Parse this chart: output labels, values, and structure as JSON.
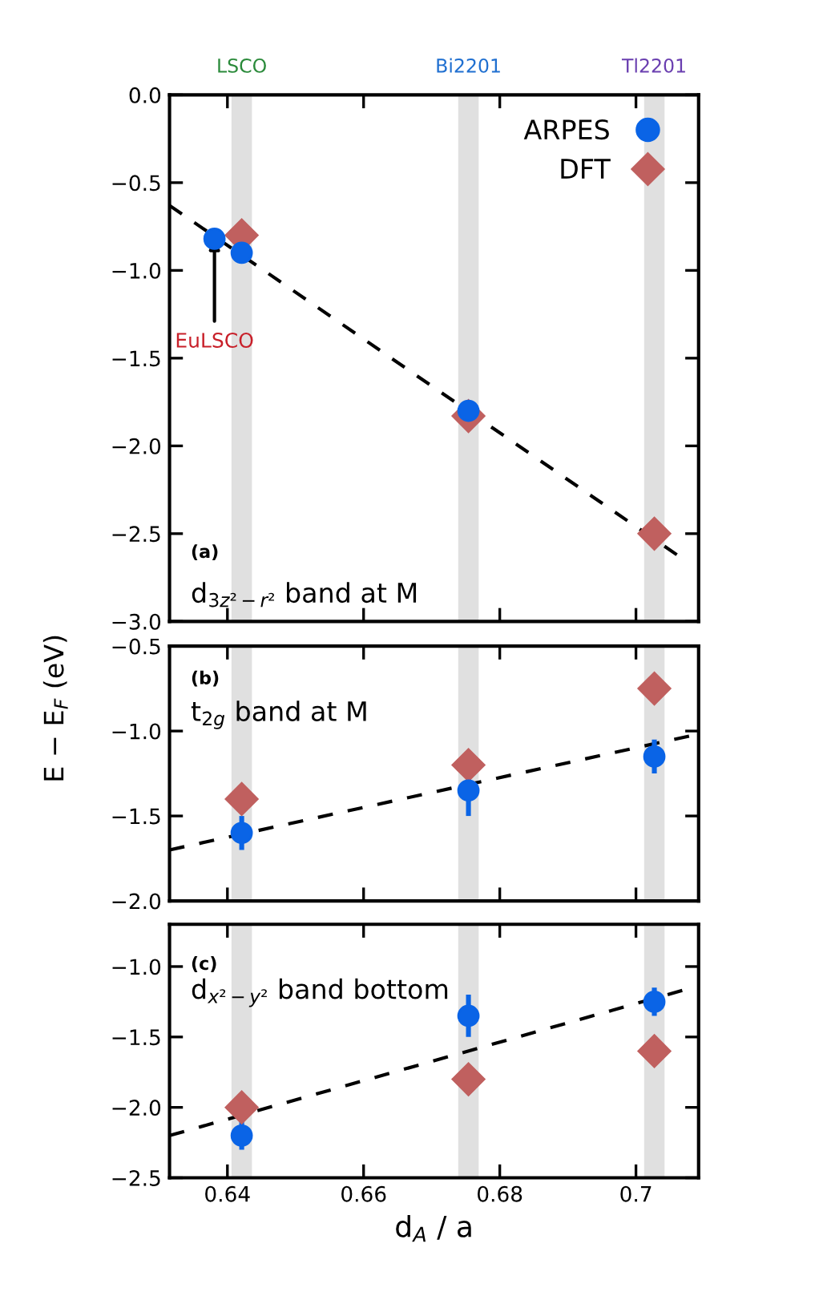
{
  "chart_data": [
    {
      "type": "scatter",
      "ylabel": "E − E$_{F}$ (eV)",
      "xlim": [
        0.6315,
        0.7092
      ],
      "xticks": [
        0.64,
        0.66,
        0.68,
        0.7
      ],
      "ylim": [
        -3.0,
        0.0
      ],
      "yticks": [
        {
          "value": -3.0,
          "label": "−3.0"
        },
        {
          "value": -2.5,
          "label": "−2.5"
        },
        {
          "value": -2.0,
          "label": "−2.0"
        },
        {
          "value": -1.5,
          "label": "−1.5"
        },
        {
          "value": -1.0,
          "label": "−1.0"
        },
        {
          "value": -0.5,
          "label": "−0.5"
        },
        {
          "value": 0.0,
          "label": "0.0"
        }
      ],
      "tick_labels": "y",
      "legend": "top right",
      "grid": false,
      "bands": [
        {
          "axis": "x",
          "from": 0.6406,
          "to": 0.6436,
          "color": "#e0e0e0",
          "label": "LSCO"
        },
        {
          "axis": "x",
          "from": 0.6739,
          "to": 0.6769,
          "color": "#e0e0e0",
          "label": "Bi2201"
        },
        {
          "axis": "x",
          "from": 0.7012,
          "to": 0.7042,
          "color": "#e0e0e0",
          "label": "Tl2201"
        }
      ],
      "annotations": [
        "(a)",
        "d$_{3z²−r²}$ band at M",
        {
          "text": "EuLSCO",
          "x": 0.6381,
          "y": -0.82
        }
      ],
      "series": [
        {
          "type": "line",
          "color": "#000000",
          "line_style": "dashed",
          "marker": "none",
          "x": [
            0.6315,
            0.706
          ],
          "values": [
            -0.63,
            -2.62
          ]
        },
        {
          "name": "ARPES",
          "color": "#0a64e6",
          "marker": "circle",
          "x": [
            0.6381,
            0.6421,
            0.6754
          ],
          "values": [
            -0.82,
            -0.9,
            -1.8
          ]
        },
        {
          "name": "DFT",
          "color": "#c0605f",
          "marker": "diamond",
          "x": [
            0.6421,
            0.6754,
            0.7027
          ],
          "values": [
            -0.8,
            -1.83,
            -2.5
          ]
        }
      ]
    },
    {
      "type": "scatter",
      "xlim": [
        0.6315,
        0.7092
      ],
      "xticks": [
        0.64,
        0.66,
        0.68,
        0.7
      ],
      "ylim": [
        -2.0,
        -0.5
      ],
      "yticks": [
        {
          "value": -2.0,
          "label": "−2.0"
        },
        {
          "value": -1.5,
          "label": "−1.5"
        },
        {
          "value": -1.0,
          "label": "−1.0"
        },
        {
          "value": -0.5,
          "label": "−0.5"
        }
      ],
      "tick_labels": "y",
      "grid": false,
      "bands": [
        {
          "axis": "x",
          "from": 0.6406,
          "to": 0.6436,
          "color": "#e0e0e0"
        },
        {
          "axis": "x",
          "from": 0.6739,
          "to": 0.6769,
          "color": "#e0e0e0"
        },
        {
          "axis": "x",
          "from": 0.7012,
          "to": 0.7042,
          "color": "#e0e0e0"
        }
      ],
      "annotations": [
        "(b)",
        "t$_{2g}$ band at M"
      ],
      "series": [
        {
          "type": "line",
          "color": "#000000",
          "line_style": "dashed",
          "marker": "none",
          "x": [
            0.6315,
            0.7078
          ],
          "values": [
            -1.7,
            -1.03
          ]
        },
        {
          "color": "#0a64e6",
          "marker": "circle",
          "x": [
            0.6421,
            0.6754,
            0.7027
          ],
          "values": [
            -1.6,
            -1.35,
            -1.15
          ],
          "errors": [
            0.1,
            0.15,
            0.1
          ]
        },
        {
          "color": "#c0605f",
          "marker": "diamond",
          "x": [
            0.6421,
            0.6754,
            0.7027
          ],
          "values": [
            -1.4,
            -1.2,
            -0.75
          ]
        }
      ]
    },
    {
      "type": "scatter",
      "xlabel": "d$_{A}$ / a",
      "xlim": [
        0.6315,
        0.7092
      ],
      "xticks": [
        0.64,
        0.66,
        0.68,
        0.7
      ],
      "ylim": [
        -2.5,
        -0.7
      ],
      "yticks": [
        {
          "value": -2.5,
          "label": "−2.5"
        },
        {
          "value": -2.0,
          "label": "−2.0"
        },
        {
          "value": -1.5,
          "label": "−1.5"
        },
        {
          "value": -1.0,
          "label": "−1.0"
        }
      ],
      "grid": false,
      "bands": [
        {
          "axis": "x",
          "from": 0.6406,
          "to": 0.6436,
          "color": "#e0e0e0"
        },
        {
          "axis": "x",
          "from": 0.6739,
          "to": 0.6769,
          "color": "#e0e0e0"
        },
        {
          "axis": "x",
          "from": 0.7012,
          "to": 0.7042,
          "color": "#e0e0e0"
        }
      ],
      "annotations": [
        "(c)",
        "d$_{x²−y²}$ band bottom"
      ],
      "series": [
        {
          "type": "line",
          "color": "#000000",
          "line_style": "dashed",
          "marker": "none",
          "x": [
            0.6315,
            0.7068
          ],
          "values": [
            -2.2,
            -1.17
          ]
        },
        {
          "color": "#0a64e6",
          "marker": "circle",
          "x": [
            0.6421,
            0.6754,
            0.7027
          ],
          "values": [
            -2.2,
            -1.35,
            -1.25
          ],
          "errors": [
            0.1,
            0.15,
            0.1
          ]
        },
        {
          "color": "#c0605f",
          "marker": "diamond",
          "x": [
            0.6421,
            0.6754,
            0.7027
          ],
          "values": [
            -2.0,
            -1.8,
            -1.6
          ]
        }
      ]
    }
  ]
}
